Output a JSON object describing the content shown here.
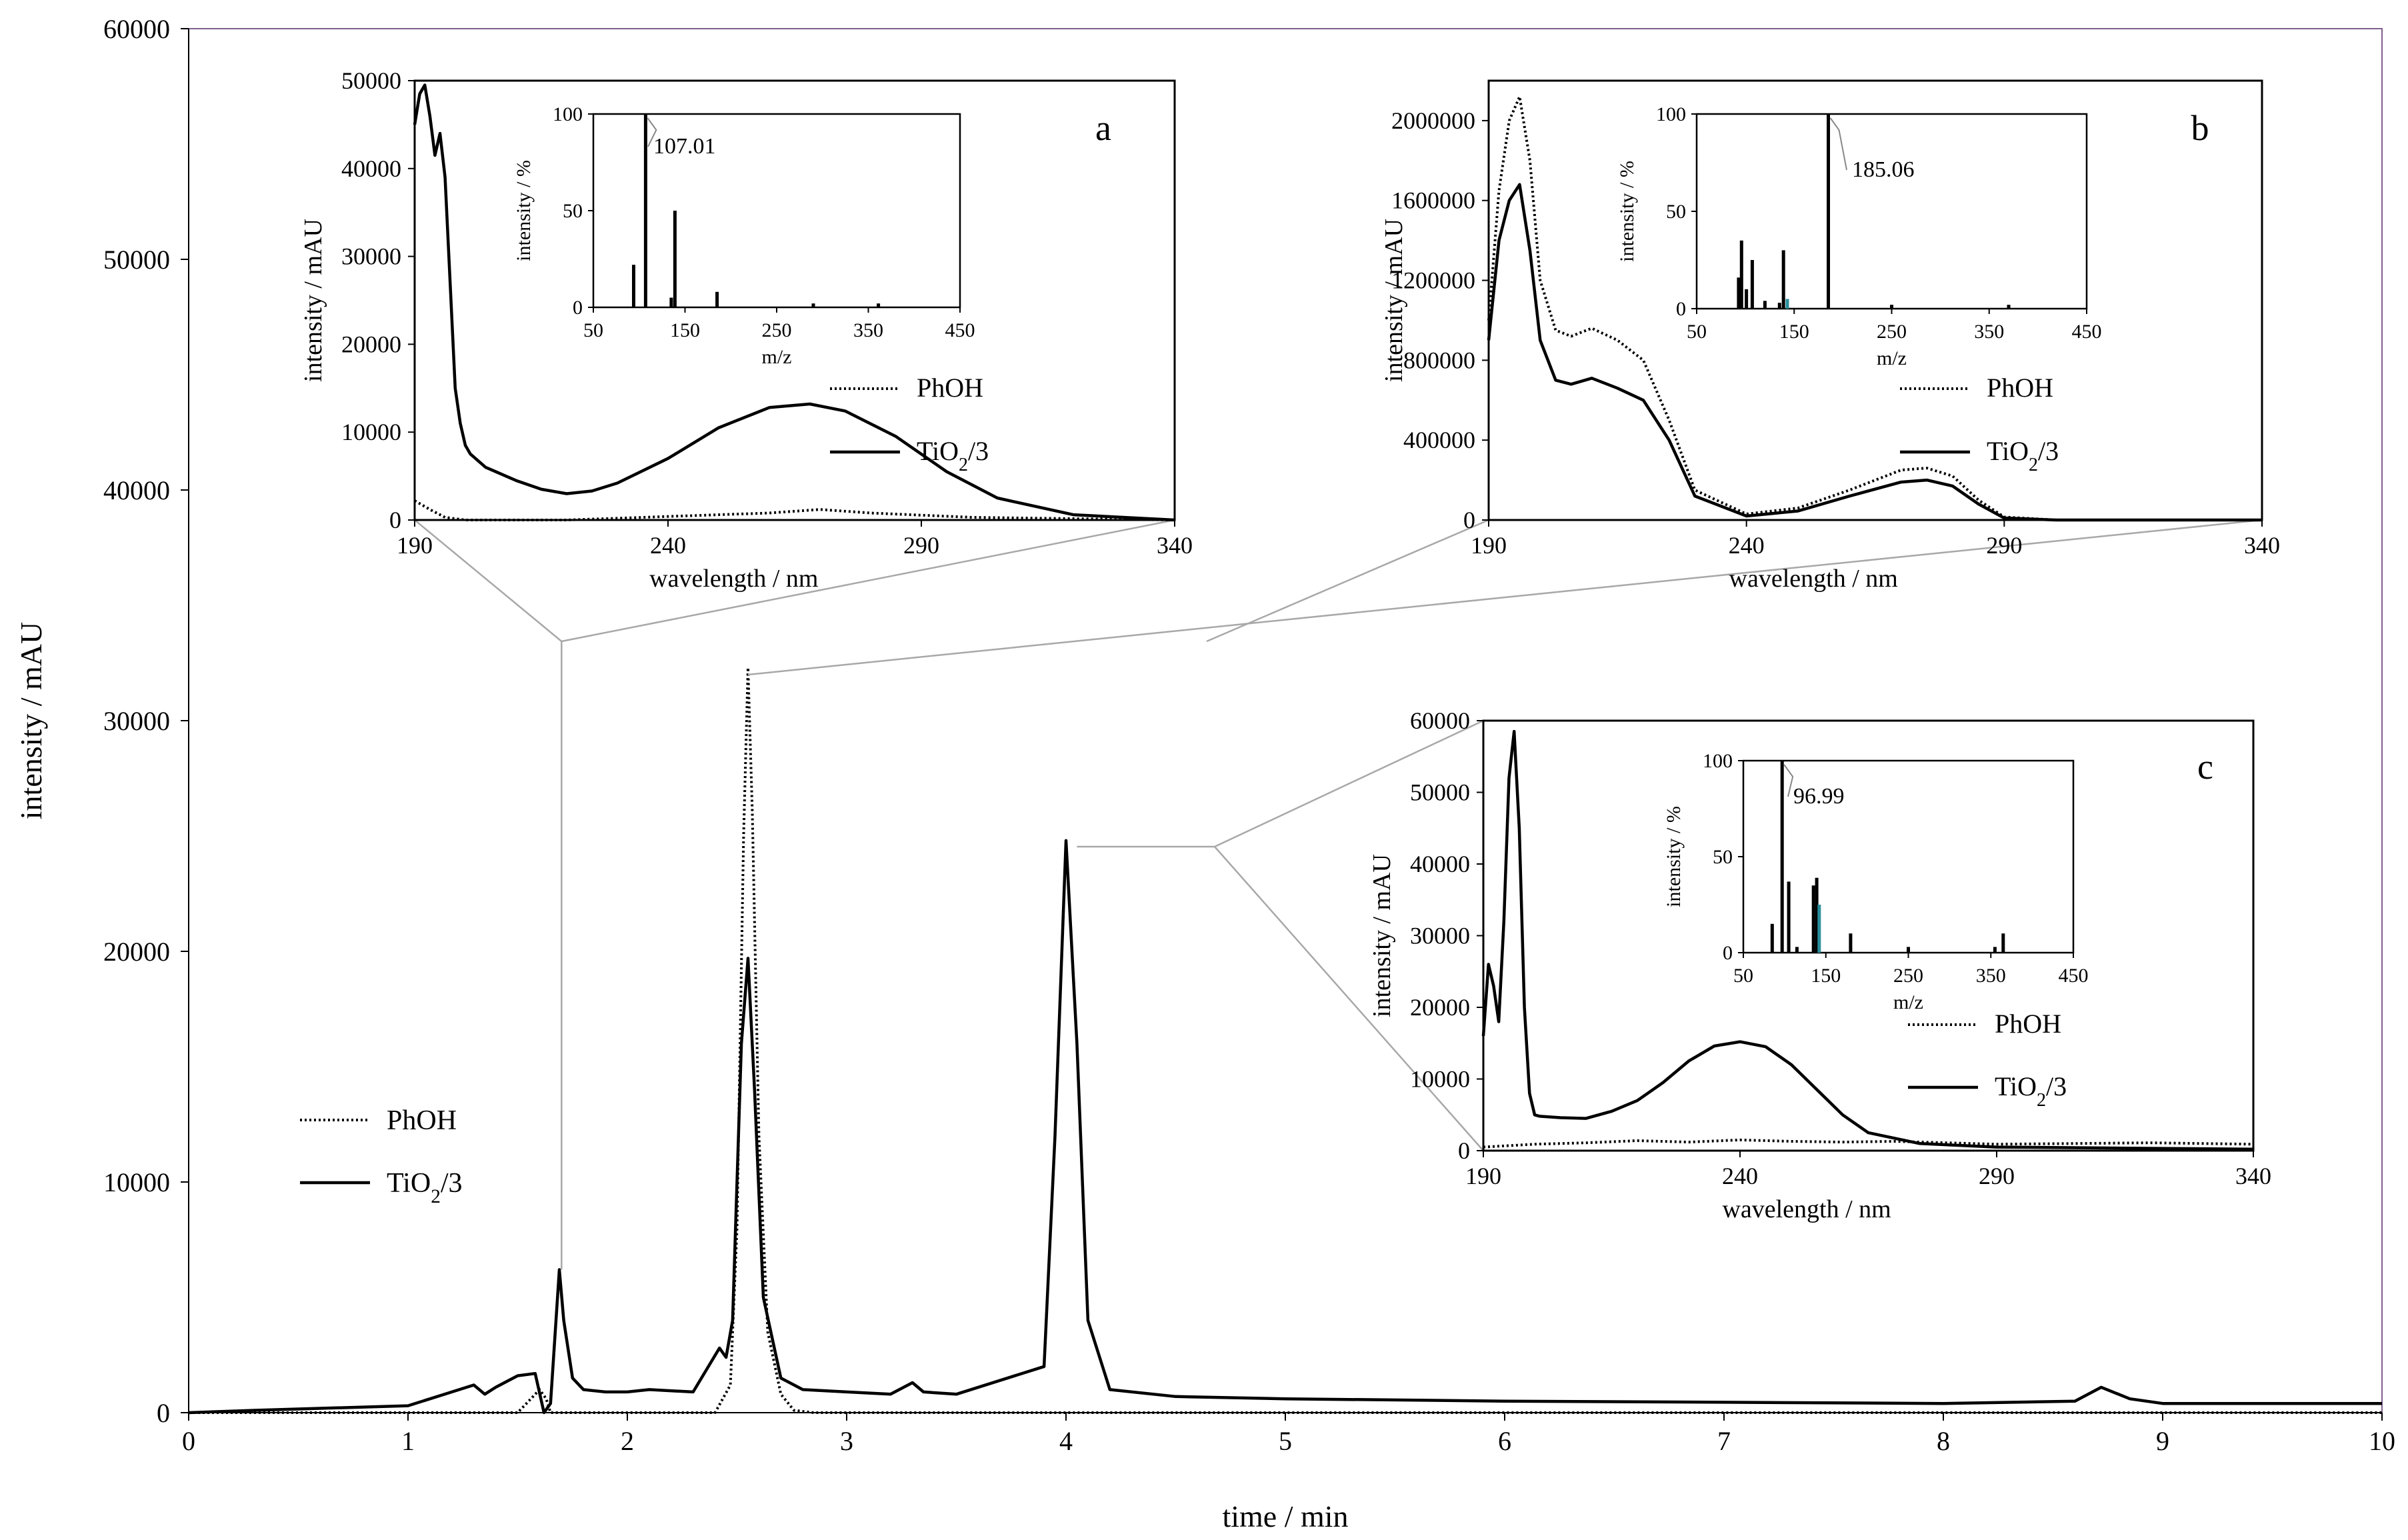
{
  "chart_data": [
    {
      "id": "main",
      "type": "line",
      "title": "",
      "xlabel": "time / min",
      "ylabel": "intensity / mAU",
      "xlim": [
        0,
        10
      ],
      "ylim": [
        0,
        60000
      ],
      "x_ticks": [
        0,
        1,
        2,
        3,
        4,
        5,
        6,
        7,
        8,
        9,
        10
      ],
      "y_ticks": [
        0,
        10000,
        20000,
        30000,
        40000,
        50000,
        60000
      ],
      "legend": {
        "position": "left-lower",
        "entries": [
          "PhOH",
          "TiO2/3"
        ]
      },
      "series": [
        {
          "name": "PhOH",
          "style": "dotted",
          "x": [
            0,
            1.5,
            1.55,
            1.6,
            1.63,
            1.65,
            2.4,
            2.47,
            2.5,
            2.53,
            2.55,
            2.57,
            2.6,
            2.64,
            2.7,
            2.76,
            2.85,
            10
          ],
          "y": [
            0,
            0,
            500,
            1000,
            600,
            0,
            0,
            1200,
            8000,
            25000,
            32300,
            26000,
            12000,
            3500,
            800,
            100,
            0,
            0
          ]
        },
        {
          "name": "TiO2/3",
          "style": "solid",
          "x": [
            0,
            0.3,
            1.0,
            1.2,
            1.3,
            1.35,
            1.4,
            1.5,
            1.58,
            1.62,
            1.65,
            1.69,
            1.71,
            1.75,
            1.8,
            1.9,
            2.0,
            2.1,
            2.3,
            2.42,
            2.45,
            2.48,
            2.52,
            2.55,
            2.58,
            2.62,
            2.7,
            2.8,
            3.0,
            3.2,
            3.3,
            3.35,
            3.5,
            3.9,
            3.95,
            4.0,
            4.05,
            4.1,
            4.2,
            4.5,
            5.0,
            6.0,
            7.0,
            8.0,
            8.6,
            8.72,
            8.85,
            9.0,
            10.0
          ],
          "y": [
            0,
            100,
            300,
            900,
            1200,
            800,
            1100,
            1600,
            1700,
            0,
            400,
            6200,
            4000,
            1500,
            1000,
            900,
            900,
            1000,
            900,
            2800,
            2400,
            4000,
            16000,
            19700,
            14000,
            5000,
            1500,
            1000,
            900,
            800,
            1300,
            900,
            800,
            2000,
            12000,
            24800,
            16000,
            4000,
            1000,
            700,
            600,
            500,
            450,
            400,
            500,
            1100,
            600,
            400,
            400
          ]
        }
      ]
    },
    {
      "id": "a",
      "panel_label": "a",
      "type": "line",
      "xlabel": "wavelength / nm",
      "ylabel": "intensity / mAU",
      "xlim": [
        190,
        340
      ],
      "ylim": [
        0,
        50000
      ],
      "x_ticks": [
        190,
        240,
        290,
        340
      ],
      "y_ticks": [
        0,
        10000,
        20000,
        30000,
        40000,
        50000
      ],
      "legend": {
        "entries": [
          "PhOH",
          "TiO2/3"
        ]
      },
      "series": [
        {
          "name": "PhOH",
          "style": "dotted",
          "x": [
            190,
            193,
            196,
            200,
            220,
            240,
            260,
            270,
            280,
            300,
            340
          ],
          "y": [
            2200,
            1200,
            300,
            0,
            0,
            400,
            800,
            1200,
            800,
            300,
            0
          ]
        },
        {
          "name": "TiO2/3",
          "style": "solid",
          "x": [
            190,
            191,
            192,
            193,
            194,
            195,
            196,
            197,
            198,
            199,
            200,
            201,
            202,
            204,
            206,
            210,
            215,
            220,
            225,
            230,
            240,
            250,
            260,
            268,
            275,
            285,
            295,
            305,
            320,
            340
          ],
          "y": [
            45000,
            48500,
            49500,
            46000,
            41500,
            44000,
            39000,
            27000,
            15000,
            11000,
            8500,
            7500,
            7000,
            6000,
            5500,
            4500,
            3500,
            3000,
            3300,
            4200,
            7000,
            10500,
            12800,
            13200,
            12400,
            9500,
            5500,
            2500,
            600,
            0
          ]
        }
      ],
      "ms_inset": {
        "type": "bar",
        "xlabel": "m/z",
        "ylabel": "intensity / %",
        "xlim": [
          50,
          450
        ],
        "ylim": [
          0,
          100
        ],
        "x_ticks": [
          50,
          150,
          250,
          350,
          450
        ],
        "y_ticks": [
          0,
          50,
          100
        ],
        "base_peak_label": "107.01",
        "bars": [
          {
            "mz": 94,
            "value": 22
          },
          {
            "mz": 107.01,
            "value": 100
          },
          {
            "mz": 135,
            "value": 5
          },
          {
            "mz": 139,
            "value": 50
          },
          {
            "mz": 185,
            "value": 8
          },
          {
            "mz": 290,
            "value": 2
          },
          {
            "mz": 361,
            "value": 2
          }
        ]
      }
    },
    {
      "id": "b",
      "panel_label": "b",
      "type": "line",
      "xlabel": "wavelength / nm",
      "ylabel": "intensity / mAU",
      "xlim": [
        190,
        340
      ],
      "ylim": [
        0,
        2200000
      ],
      "x_ticks": [
        190,
        240,
        290,
        340
      ],
      "y_ticks": [
        0,
        400000,
        800000,
        1200000,
        1600000,
        2000000
      ],
      "legend": {
        "entries": [
          "PhOH",
          "TiO2/3"
        ]
      },
      "series": [
        {
          "name": "PhOH",
          "style": "dotted",
          "x": [
            190,
            192,
            194,
            196,
            198,
            200,
            203,
            206,
            210,
            215,
            220,
            225,
            230,
            240,
            250,
            260,
            270,
            275,
            280,
            285,
            290,
            300,
            340
          ],
          "y": [
            1000000,
            1650000,
            2000000,
            2120000,
            1800000,
            1200000,
            950000,
            920000,
            960000,
            900000,
            800000,
            500000,
            150000,
            30000,
            60000,
            150000,
            250000,
            260000,
            220000,
            100000,
            15000,
            0,
            0
          ]
        },
        {
          "name": "TiO2/3",
          "style": "solid",
          "x": [
            190,
            192,
            194,
            196,
            198,
            200,
            203,
            206,
            210,
            215,
            220,
            225,
            230,
            240,
            250,
            260,
            270,
            275,
            280,
            285,
            290,
            300,
            340
          ],
          "y": [
            900000,
            1400000,
            1600000,
            1680000,
            1350000,
            900000,
            700000,
            680000,
            710000,
            660000,
            600000,
            400000,
            120000,
            20000,
            45000,
            120000,
            190000,
            200000,
            170000,
            80000,
            10000,
            0,
            0
          ]
        }
      ],
      "ms_inset": {
        "type": "bar",
        "xlabel": "m/z",
        "ylabel": "intensity / %",
        "xlim": [
          50,
          450
        ],
        "ylim": [
          0,
          100
        ],
        "x_ticks": [
          50,
          150,
          250,
          350,
          450
        ],
        "y_ticks": [
          0,
          50,
          100
        ],
        "base_peak_label": "185.06",
        "bars": [
          {
            "mz": 93,
            "value": 16
          },
          {
            "mz": 96,
            "value": 35
          },
          {
            "mz": 101,
            "value": 10
          },
          {
            "mz": 107,
            "value": 25
          },
          {
            "mz": 120,
            "value": 4
          },
          {
            "mz": 135,
            "value": 3
          },
          {
            "mz": 139,
            "value": 30
          },
          {
            "mz": 143,
            "value": 5,
            "color": "teal"
          },
          {
            "mz": 185.06,
            "value": 100
          },
          {
            "mz": 250,
            "value": 2
          },
          {
            "mz": 370,
            "value": 2
          }
        ]
      }
    },
    {
      "id": "c",
      "panel_label": "c",
      "type": "line",
      "xlabel": "wavelength / nm",
      "ylabel": "intensity / mAU",
      "xlim": [
        190,
        340
      ],
      "ylim": [
        0,
        60000
      ],
      "x_ticks": [
        190,
        240,
        290,
        340
      ],
      "y_ticks": [
        0,
        10000,
        20000,
        30000,
        40000,
        50000,
        60000
      ],
      "legend": {
        "entries": [
          "PhOH",
          "TiO2/3"
        ]
      },
      "series": [
        {
          "name": "PhOH",
          "style": "dotted",
          "x": [
            190,
            200,
            210,
            220,
            230,
            240,
            250,
            260,
            270,
            290,
            320,
            340
          ],
          "y": [
            500,
            900,
            1100,
            1400,
            1200,
            1500,
            1300,
            1200,
            1300,
            900,
            1100,
            900
          ]
        },
        {
          "name": "TiO2/3",
          "style": "solid",
          "x": [
            190,
            191,
            192,
            193,
            194,
            195,
            196,
            197,
            198,
            199,
            200,
            201,
            205,
            210,
            215,
            220,
            225,
            230,
            235,
            240,
            245,
            250,
            255,
            260,
            265,
            275,
            290,
            340
          ],
          "y": [
            16000,
            26000,
            23000,
            18000,
            32000,
            52000,
            58500,
            45000,
            20000,
            8000,
            5000,
            4800,
            4600,
            4500,
            5500,
            7000,
            9500,
            12500,
            14600,
            15200,
            14500,
            12000,
            8500,
            5000,
            2500,
            1000,
            500,
            200
          ]
        }
      ],
      "ms_inset": {
        "type": "bar",
        "xlabel": "m/z",
        "ylabel": "intensity / %",
        "xlim": [
          50,
          450
        ],
        "ylim": [
          0,
          100
        ],
        "x_ticks": [
          50,
          150,
          250,
          350,
          450
        ],
        "y_ticks": [
          0,
          50,
          100
        ],
        "base_peak_label": "96.99",
        "bars": [
          {
            "mz": 85,
            "value": 15
          },
          {
            "mz": 96.99,
            "value": 100
          },
          {
            "mz": 105,
            "value": 37
          },
          {
            "mz": 115,
            "value": 3
          },
          {
            "mz": 135,
            "value": 35
          },
          {
            "mz": 139,
            "value": 39
          },
          {
            "mz": 142,
            "value": 25,
            "color": "teal"
          },
          {
            "mz": 180,
            "value": 10
          },
          {
            "mz": 250,
            "value": 3
          },
          {
            "mz": 355,
            "value": 3
          },
          {
            "mz": 365,
            "value": 10
          }
        ]
      }
    }
  ],
  "labels": {
    "tio2_prefix": "TiO",
    "tio2_sub": "2",
    "tio2_suffix": "/3"
  }
}
